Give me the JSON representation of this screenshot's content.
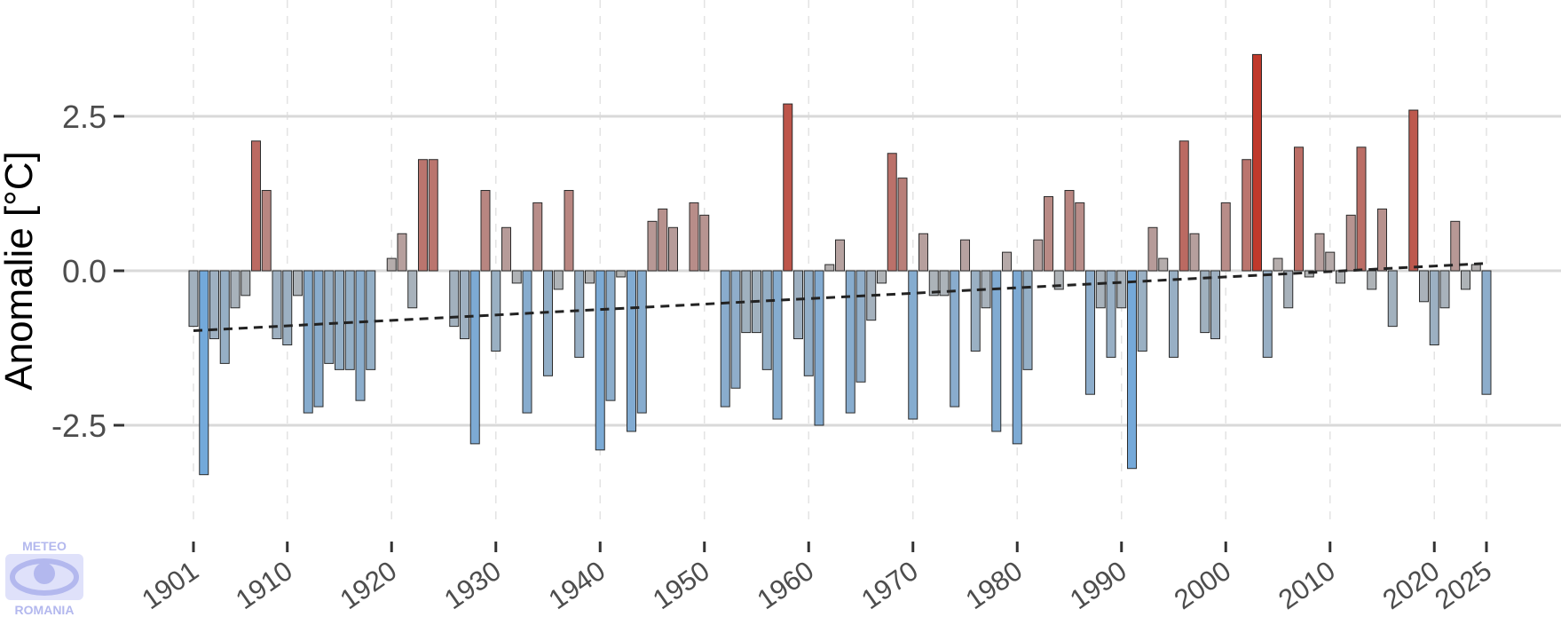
{
  "chart_data": {
    "type": "bar",
    "title": "",
    "xlabel": "",
    "ylabel": "Anomalie [°C]",
    "ylim": [
      -4.6,
      4.6
    ],
    "xlim": [
      1899.8,
      2026.5
    ],
    "y_ticks": [
      {
        "value": 2.5,
        "label": "2.5"
      },
      {
        "value": 0,
        "label": "0.0"
      },
      {
        "value": -2.5,
        "label": "-2.5"
      }
    ],
    "x_ticks": [
      {
        "value": 1901,
        "label": "1901"
      },
      {
        "value": 1910,
        "label": "1910"
      },
      {
        "value": 1920,
        "label": "1920"
      },
      {
        "value": 1930,
        "label": "1930"
      },
      {
        "value": 1940,
        "label": "1940"
      },
      {
        "value": 1950,
        "label": "1950"
      },
      {
        "value": 1960,
        "label": "1960"
      },
      {
        "value": 1970,
        "label": "1970"
      },
      {
        "value": 1980,
        "label": "1980"
      },
      {
        "value": 1990,
        "label": "1990"
      },
      {
        "value": 2000,
        "label": "2000"
      },
      {
        "value": 2010,
        "label": "2010"
      },
      {
        "value": 2020,
        "label": "2020"
      },
      {
        "value": 2025,
        "label": "2025"
      }
    ],
    "grid": {
      "horizontal_major": true,
      "vertical_dashed": true
    },
    "legend": "none",
    "color_scale": {
      "negative": "#6fa8dc",
      "neutral": "#b4b4b4",
      "positive": "#c0392b",
      "max_abs": 3.5
    },
    "trend": {
      "start_year": 1901,
      "start_value": -0.97,
      "end_year": 2025,
      "end_value": 0.12
    },
    "x": [
      1901,
      1902,
      1903,
      1904,
      1905,
      1906,
      1907,
      1908,
      1909,
      1910,
      1911,
      1912,
      1913,
      1914,
      1915,
      1916,
      1917,
      1918,
      1919,
      1920,
      1921,
      1922,
      1923,
      1924,
      1925,
      1926,
      1927,
      1928,
      1929,
      1930,
      1931,
      1932,
      1933,
      1934,
      1935,
      1936,
      1937,
      1938,
      1939,
      1940,
      1941,
      1942,
      1943,
      1944,
      1945,
      1946,
      1947,
      1948,
      1949,
      1950,
      1951,
      1952,
      1953,
      1954,
      1955,
      1956,
      1957,
      1958,
      1959,
      1960,
      1961,
      1962,
      1963,
      1964,
      1965,
      1966,
      1967,
      1968,
      1969,
      1970,
      1971,
      1972,
      1973,
      1974,
      1975,
      1976,
      1977,
      1978,
      1979,
      1980,
      1981,
      1982,
      1983,
      1984,
      1985,
      1986,
      1987,
      1988,
      1989,
      1990,
      1991,
      1992,
      1993,
      1994,
      1995,
      1996,
      1997,
      1998,
      1999,
      2000,
      2001,
      2002,
      2003,
      2004,
      2005,
      2006,
      2007,
      2008,
      2009,
      2010,
      2011,
      2012,
      2013,
      2014,
      2015,
      2016,
      2017,
      2018,
      2019,
      2020,
      2021,
      2022,
      2023,
      2024,
      2025
    ],
    "values": [
      -0.9,
      -3.3,
      -1.1,
      -1.5,
      -0.6,
      -0.4,
      2.1,
      1.3,
      -1.1,
      -1.2,
      -0.4,
      -2.3,
      -2.2,
      -1.5,
      -1.6,
      -1.6,
      -2.1,
      -1.6,
      0.0,
      0.2,
      0.6,
      -0.6,
      1.8,
      1.8,
      0.0,
      -0.9,
      -1.1,
      -2.8,
      1.3,
      -1.3,
      0.7,
      -0.2,
      -2.3,
      1.1,
      -1.7,
      -0.3,
      1.3,
      -1.4,
      -0.2,
      -2.9,
      -2.1,
      -0.1,
      -2.6,
      -2.3,
      0.8,
      1.0,
      0.7,
      0.0,
      1.1,
      0.9,
      0.0,
      -2.2,
      -1.9,
      -1.0,
      -1.0,
      -1.6,
      -2.4,
      2.7,
      -1.1,
      -1.7,
      -2.5,
      0.1,
      0.5,
      -2.3,
      -1.8,
      -0.8,
      -0.2,
      1.9,
      1.5,
      -2.4,
      0.6,
      -0.4,
      -0.4,
      -2.2,
      0.5,
      -1.3,
      -0.6,
      -2.6,
      0.3,
      -2.8,
      -1.6,
      0.5,
      1.2,
      -0.3,
      1.3,
      1.1,
      -2.0,
      -0.6,
      -1.4,
      -0.6,
      -3.2,
      -1.3,
      0.7,
      0.2,
      -1.4,
      2.1,
      0.6,
      -1.0,
      -1.1,
      1.1,
      0.0,
      1.8,
      3.5,
      -1.4,
      0.2,
      -0.6,
      2.0,
      -0.1,
      0.6,
      0.3,
      -0.2,
      0.9,
      2.0,
      -0.3,
      1.0,
      -0.9,
      0.0,
      2.6,
      -0.5,
      -1.2,
      -0.6,
      0.8,
      -0.3,
      0.1,
      -2.0
    ]
  },
  "logo": {
    "top_text": "METEO",
    "bottom_text": "ROMANIA"
  }
}
